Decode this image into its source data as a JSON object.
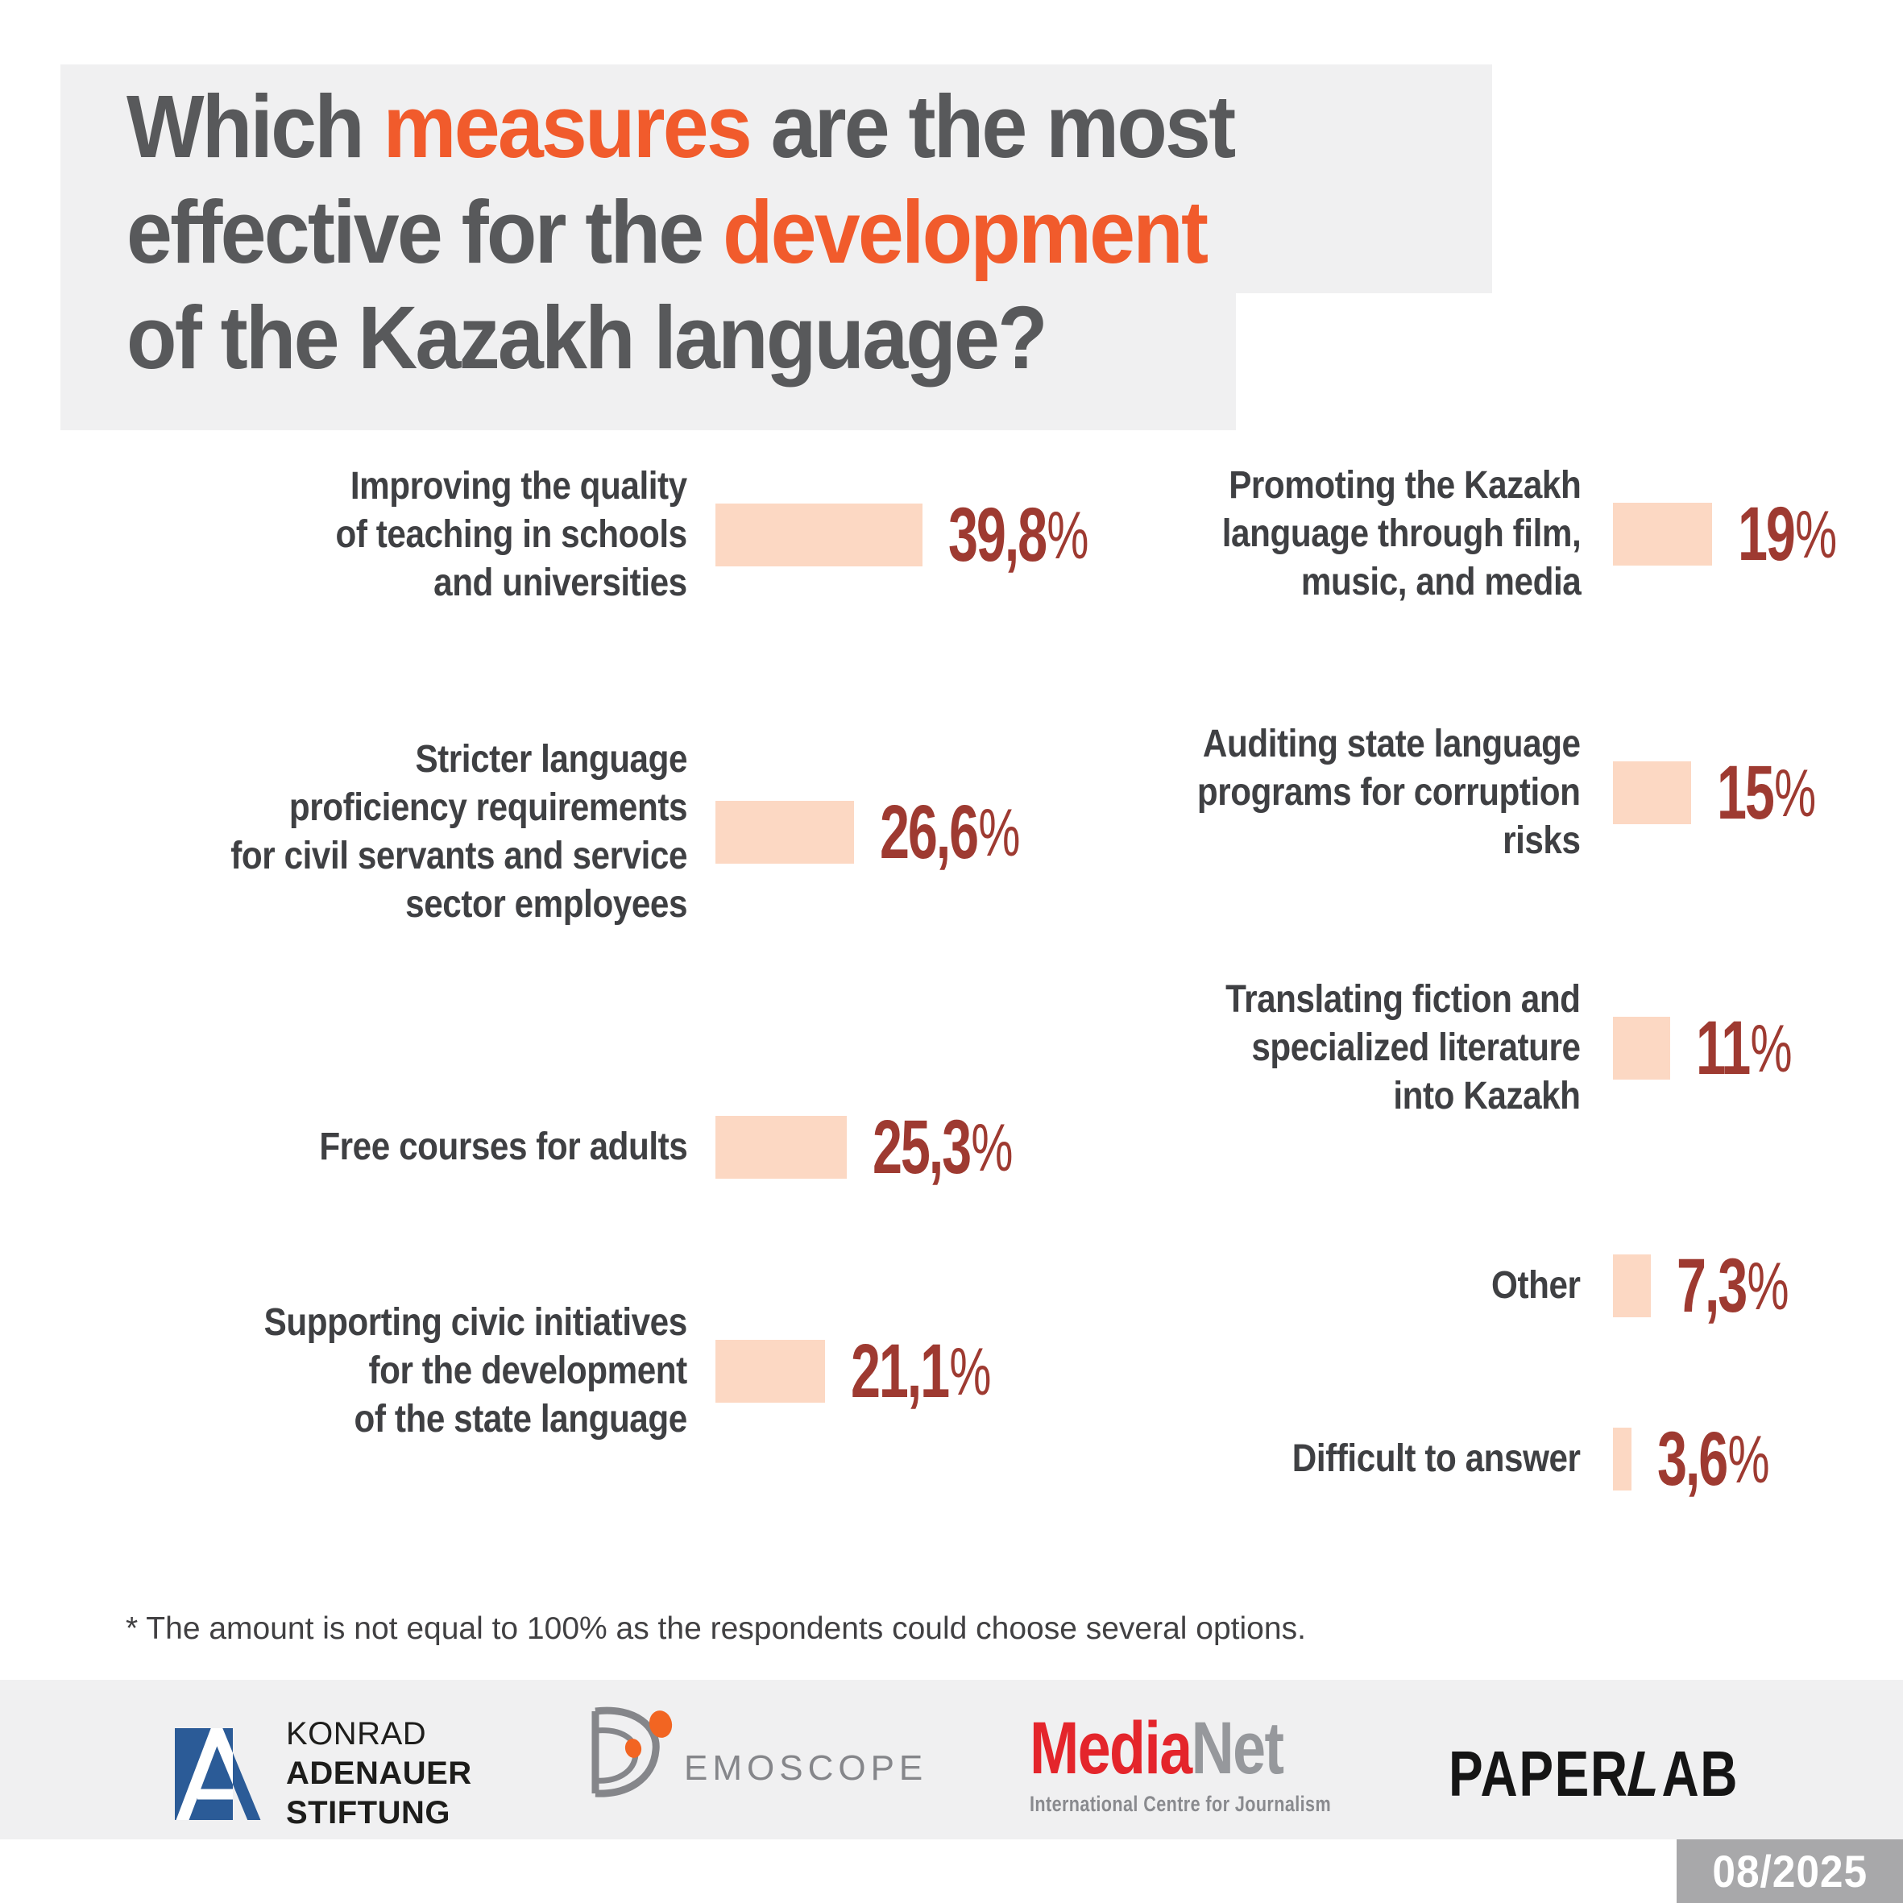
{
  "page": {
    "background": "#ffffff"
  },
  "title": {
    "bg_color": "#f0f0f1",
    "text_color": "#58595b",
    "accent_color": "#f15b2c",
    "lines": [
      {
        "segments": [
          {
            "text": "Which ",
            "accent": false
          },
          {
            "text": "measures",
            "accent": true
          },
          {
            "text": " are the most",
            "accent": false
          }
        ]
      },
      {
        "segments": [
          {
            "text": "effective for the ",
            "accent": false
          },
          {
            "text": "development",
            "accent": true
          }
        ]
      },
      {
        "segments": [
          {
            "text": "of the Kazakh language?",
            "accent": false
          }
        ]
      }
    ]
  },
  "chart_data": {
    "type": "bar",
    "orientation": "horizontal",
    "unit": "%",
    "bar_color": "#fcd8c3",
    "value_color": "#9e3a31",
    "label_color": "#3f4043",
    "columns": [
      {
        "items": [
          {
            "label_lines": [
              "Improving the quality",
              "of teaching in schools",
              "and universities"
            ],
            "value": 39.8,
            "display": "39,8%"
          },
          {
            "label_lines": [
              "Stricter language",
              "proficiency requirements",
              "for civil servants and service",
              "sector employees"
            ],
            "value": 26.6,
            "display": "26,6%"
          },
          {
            "label_lines": [
              "Free courses for adults"
            ],
            "value": 25.3,
            "display": "25,3%"
          },
          {
            "label_lines": [
              "Supporting civic initiatives",
              "for the development",
              "of the state language"
            ],
            "value": 21.1,
            "display": "21,1%"
          }
        ]
      },
      {
        "items": [
          {
            "label_lines": [
              "Promoting the Kazakh",
              "language through film,",
              "music, and media"
            ],
            "value": 19,
            "display": "19%"
          },
          {
            "label_lines": [
              "Auditing state language",
              "programs for corruption",
              "risks"
            ],
            "value": 15,
            "display": "15%"
          },
          {
            "label_lines": [
              "Translating fiction and",
              "specialized literature",
              "into Kazakh"
            ],
            "value": 11,
            "display": "11%"
          },
          {
            "label_lines": [
              "Other"
            ],
            "value": 7.3,
            "display": "7,3%"
          },
          {
            "label_lines": [
              "Difficult to answer"
            ],
            "value": 3.6,
            "display": "3,6%"
          }
        ]
      }
    ]
  },
  "footnote": "* The amount is not equal to 100% as the respondents could choose several options.",
  "footer": {
    "bg_color": "#f0f0f1",
    "kas": {
      "line1": "KONRAD",
      "line2": "ADENAUER",
      "line3": "STIFTUNG"
    },
    "demoscope": {
      "wordmark": "EMOSCOPE"
    },
    "medianet": {
      "part1": "Media",
      "part2": "Net",
      "tagline": "International Centre for Journalism"
    },
    "paperlab": {
      "part1": "PAPER",
      "letter": "L",
      "part2": "AB"
    },
    "badge": {
      "label": "08/2025",
      "bg_color": "#a8a8aa"
    }
  }
}
